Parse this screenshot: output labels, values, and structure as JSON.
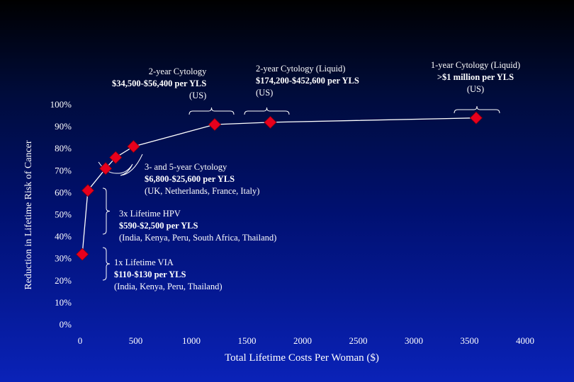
{
  "chart_data": {
    "type": "scatter",
    "title": "",
    "xlabel": "Total Lifetime Costs Per Woman ($)",
    "ylabel": "Reduction in Lifetime Risk of Cancer",
    "xlim": [
      0,
      4000
    ],
    "ylim": [
      0,
      100
    ],
    "x_ticks": [
      "0",
      "500",
      "1000",
      "1500",
      "2000",
      "2500",
      "3000",
      "3500",
      "4000"
    ],
    "y_ticks": [
      "0%",
      "10%",
      "20%",
      "30%",
      "40%",
      "50%",
      "60%",
      "70%",
      "80%",
      "90%",
      "100%"
    ],
    "grid": false,
    "marker_color": "#e8001c",
    "line_color": "#ffffff",
    "points": [
      {
        "x": 20,
        "y": 32
      },
      {
        "x": 70,
        "y": 61
      },
      {
        "x": 230,
        "y": 71
      },
      {
        "x": 320,
        "y": 76
      },
      {
        "x": 480,
        "y": 81
      },
      {
        "x": 1210,
        "y": 91
      },
      {
        "x": 1710,
        "y": 92
      },
      {
        "x": 3560,
        "y": 94
      }
    ],
    "annotations": [
      {
        "id": "a2yc",
        "lines": [
          "2-year Cytology",
          "$34,500-$56,400 per YLS",
          "(US)"
        ]
      },
      {
        "id": "a2yl",
        "lines": [
          "2-year Cytology (Liquid)",
          "$174,200-$452,600 per YLS",
          "(US)"
        ]
      },
      {
        "id": "a1yl",
        "lines": [
          "1-year Cytology (Liquid)",
          ">$1 million per YLS",
          "(US)"
        ]
      },
      {
        "id": "a35",
        "lines": [
          "3- and 5-year Cytology",
          "$6,800-$25,600 per YLS",
          "(UK, Netherlands, France, Italy)"
        ]
      },
      {
        "id": "a3hpv",
        "lines": [
          "3x Lifetime HPV",
          "$590-$2,500 per YLS",
          "(India, Kenya, Peru, South Africa, Thailand)"
        ]
      },
      {
        "id": "a1via",
        "lines": [
          "1x Lifetime VIA",
          "$110-$130 per YLS",
          "(India, Kenya, Peru, Thailand)"
        ]
      }
    ]
  }
}
